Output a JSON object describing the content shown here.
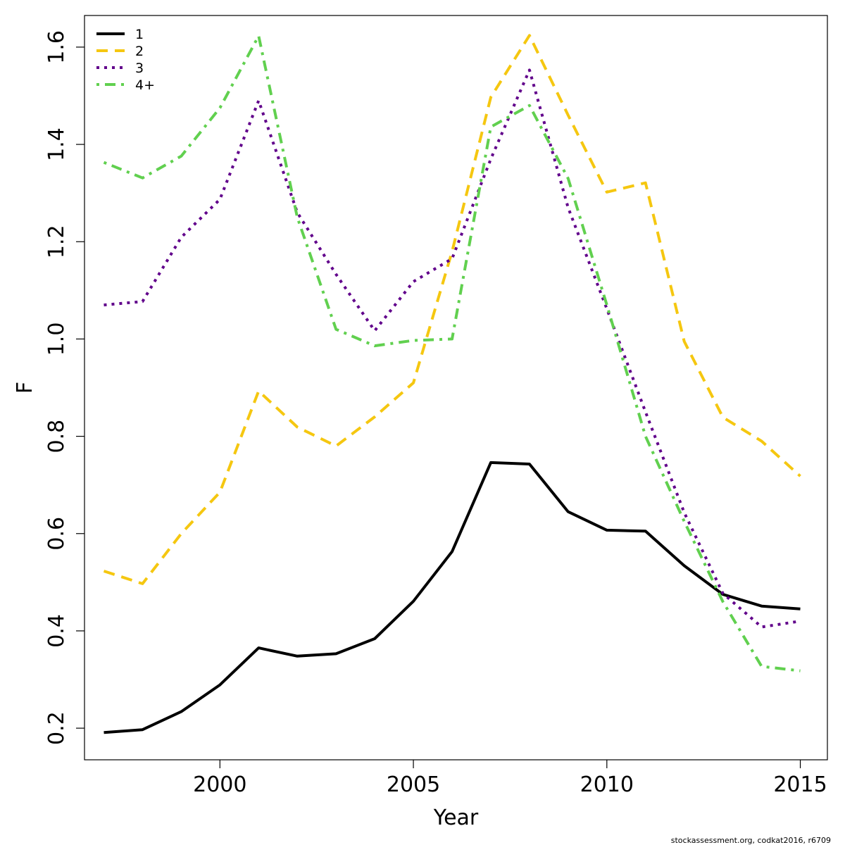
{
  "chart_data": {
    "type": "line",
    "xlabel": "Year",
    "ylabel": "F",
    "xlim": [
      1996.5,
      2015.7
    ],
    "ylim": [
      0.135,
      1.665
    ],
    "x_ticks": [
      2000,
      2005,
      2010,
      2015
    ],
    "y_ticks": [
      0.2,
      0.4,
      0.6,
      0.8,
      1.0,
      1.2,
      1.4,
      1.6
    ],
    "y_tick_labels": [
      "0.2",
      "0.4",
      "0.6",
      "0.8",
      "1.0",
      "1.2",
      "1.4",
      "1.6"
    ],
    "legend_position": "top-left",
    "grid": false,
    "x": [
      1997,
      1998,
      1999,
      2000,
      2001,
      2002,
      2003,
      2004,
      2005,
      2006,
      2007,
      2008,
      2009,
      2010,
      2011,
      2012,
      2013,
      2014,
      2015
    ],
    "series": [
      {
        "name": "1",
        "color": "#000000",
        "dash": "solid",
        "values": [
          0.191,
          0.197,
          0.234,
          0.289,
          0.365,
          0.348,
          0.353,
          0.384,
          0.461,
          0.563,
          0.746,
          0.743,
          0.645,
          0.607,
          0.605,
          0.534,
          0.475,
          0.451,
          0.445
        ]
      },
      {
        "name": "2",
        "color": "#F5C710",
        "dash": "dashed",
        "values": [
          0.523,
          0.497,
          0.6,
          0.685,
          0.893,
          0.819,
          0.78,
          0.84,
          0.91,
          1.18,
          1.497,
          1.624,
          1.46,
          1.302,
          1.321,
          0.995,
          0.839,
          0.79,
          0.718
        ]
      },
      {
        "name": "3",
        "color": "#61008B",
        "dash": "dotted",
        "values": [
          1.07,
          1.077,
          1.209,
          1.287,
          1.49,
          1.26,
          1.133,
          1.017,
          1.118,
          1.165,
          1.37,
          1.553,
          1.27,
          1.062,
          0.85,
          0.643,
          0.477,
          0.408,
          0.42
        ]
      },
      {
        "name": "4+",
        "color": "#61D04F",
        "dash": "dotdash",
        "values": [
          1.363,
          1.331,
          1.376,
          1.475,
          1.623,
          1.25,
          1.02,
          0.986,
          0.997,
          1.0,
          1.436,
          1.48,
          1.33,
          1.07,
          0.8,
          0.625,
          0.46,
          0.327,
          0.318
        ]
      }
    ]
  },
  "credit": "stockassessment.org, codkat2016, r6709"
}
